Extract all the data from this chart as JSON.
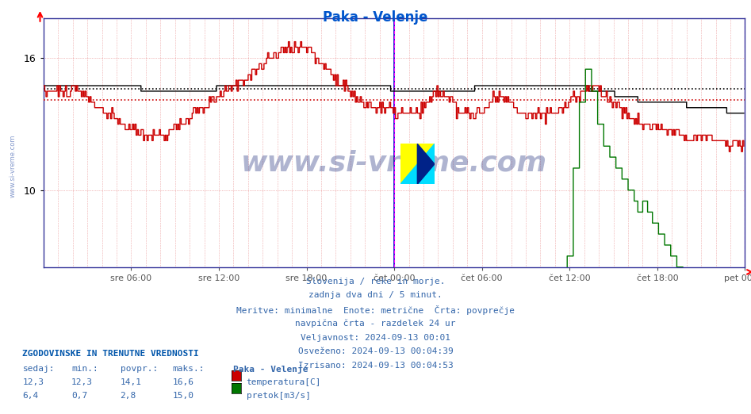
{
  "title": "Paka - Velenje",
  "title_color": "#0055cc",
  "bg_color": "#ffffff",
  "plot_bg_color": "#ffffff",
  "ylim": [
    6.5,
    17.8
  ],
  "yticks": [
    10,
    16
  ],
  "xtick_labels": [
    "sre 06:00",
    "sre 12:00",
    "sre 18:00",
    "čet 00:00",
    "čet 06:00",
    "čet 12:00",
    "čet 18:00",
    "pet 00:00"
  ],
  "xtick_positions": [
    72,
    144,
    216,
    288,
    360,
    432,
    504,
    576
  ],
  "temp_avg": 14.1,
  "flow_avg": 2.8,
  "height_avg": 14.6,
  "temp_color": "#cc0000",
  "flow_color": "#007700",
  "height_color": "#000000",
  "grid_color": "#cc0000",
  "info_lines": [
    "Slovenija / reke in morje.",
    "zadnja dva dni / 5 minut.",
    "Meritve: minimalne  Enote: metrične  Črta: povprečje",
    "navpična črta - razdelek 24 ur",
    "Veljavnost: 2024-09-13 00:01",
    "Osveženo: 2024-09-13 00:04:39",
    "Izrisano: 2024-09-13 00:04:53"
  ],
  "legend_title": "Paka - Velenje",
  "legend_entries": [
    "temperatura[C]",
    "pretok[m3/s]"
  ],
  "legend_colors": [
    "#cc0000",
    "#007700"
  ],
  "table_title": "ZGODOVINSKE IN TRENUTNE VREDNOSTI",
  "table_headers": [
    "sedaj:",
    "min.:",
    "povpr.:",
    "maks.:"
  ],
  "table_rows": [
    [
      "12,3",
      "12,3",
      "14,1",
      "16,6"
    ],
    [
      "6,4",
      "0,7",
      "2,8",
      "15,0"
    ]
  ],
  "watermark": "www.si-vreme.com",
  "n_points": 576
}
